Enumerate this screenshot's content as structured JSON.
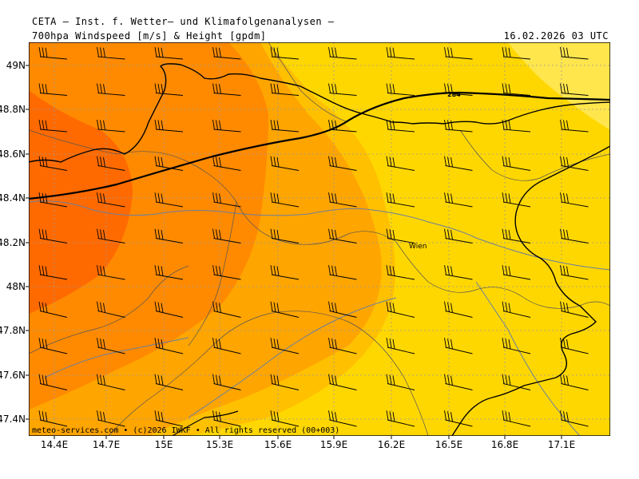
{
  "header": {
    "title": "CETA – Inst. f. Wetter– und Klimafolgenanalysen –",
    "subtitle": "700hpa Windspeed [m/s] & Height [gpdm]",
    "valid_time": "16.02.2026 03 UTC"
  },
  "axes": {
    "x_ticks": [
      "14.4E",
      "14.7E",
      "15E",
      "15.3E",
      "15.6E",
      "15.9E",
      "16.2E",
      "16.5E",
      "16.8E",
      "17.1E"
    ],
    "y_ticks": [
      "49N",
      "48.8N",
      "48.6N",
      "48.4N",
      "48.2N",
      "48N",
      "47.8N",
      "47.6N",
      "47.4N"
    ]
  },
  "map": {
    "city_label": "Wien",
    "contour_label": "284",
    "fill_colors": [
      "#ff6a00",
      "#ff8a00",
      "#ffa500",
      "#ffc000",
      "#ffd700",
      "#ffe64d"
    ],
    "wind": "three-barb westerly wind barbs across domain"
  },
  "footer": {
    "credit": "meteo-services.com • (c)2026 IWKF • All rights reserved (00+003)"
  }
}
